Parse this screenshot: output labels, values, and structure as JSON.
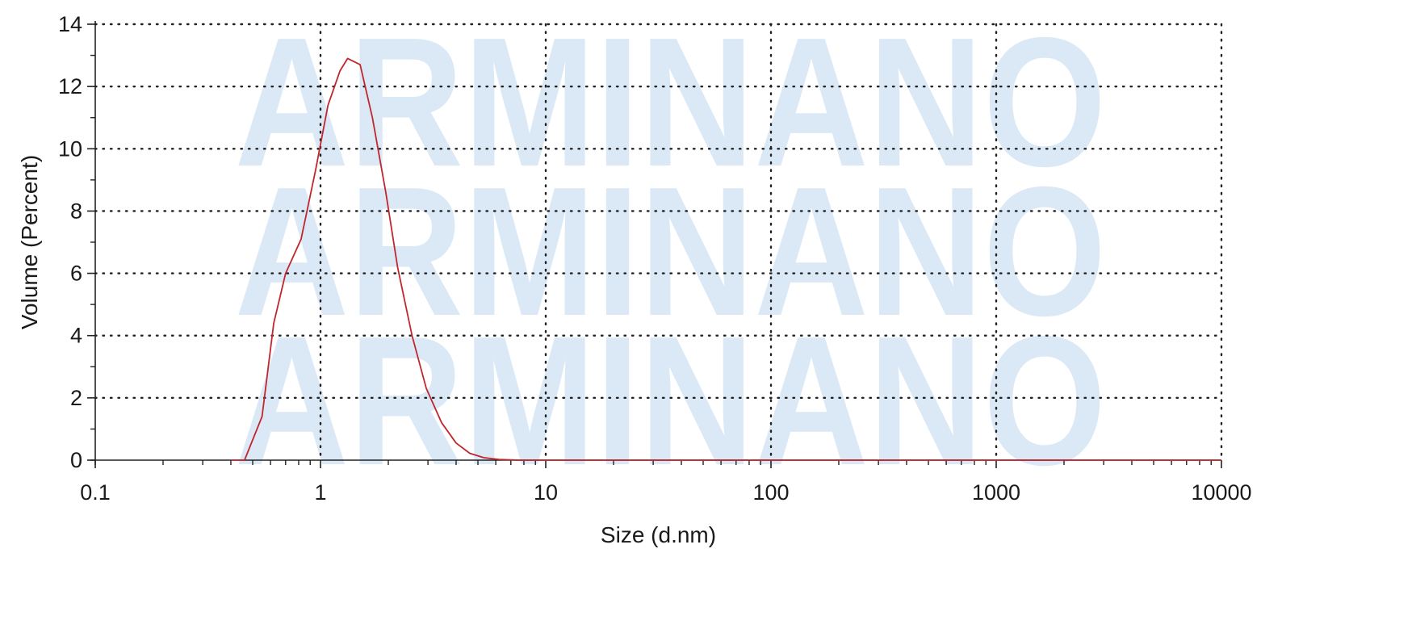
{
  "watermark": {
    "text": "ARMINANO",
    "repeat": 3,
    "color": "#dbe9f6"
  },
  "chart_data": {
    "type": "line",
    "xlabel": "Size (d.nm)",
    "ylabel": "Volume (Percent)",
    "xscale": "log",
    "xlim": [
      0.1,
      10000
    ],
    "ylim": [
      0,
      14
    ],
    "xticks": [
      0.1,
      1,
      10,
      100,
      1000,
      10000
    ],
    "xtick_labels": [
      "0.1",
      "1",
      "10",
      "100",
      "1000",
      "10000"
    ],
    "yticks": [
      0,
      2,
      4,
      6,
      8,
      10,
      12,
      14
    ],
    "ytick_labels": [
      "0",
      "2",
      "4",
      "6",
      "8",
      "10",
      "12",
      "14"
    ],
    "grid": true,
    "grid_style": "dotted",
    "line_color": "#c0272d",
    "series": [
      {
        "x": [
          0.4,
          0.46,
          0.55,
          0.62,
          0.7,
          0.82,
          0.95,
          1.08,
          1.22,
          1.32,
          1.5,
          1.7,
          1.95,
          2.2,
          2.55,
          2.95,
          3.45,
          4.0,
          4.6,
          5.3,
          6.2,
          7.5,
          10,
          100,
          1000,
          10000
        ],
        "y": [
          0,
          0,
          1.4,
          4.4,
          6.0,
          7.1,
          9.3,
          11.4,
          12.5,
          12.9,
          12.7,
          11.0,
          8.6,
          6.2,
          4.0,
          2.3,
          1.2,
          0.55,
          0.22,
          0.08,
          0.02,
          0,
          0,
          0,
          0,
          0
        ]
      }
    ]
  }
}
